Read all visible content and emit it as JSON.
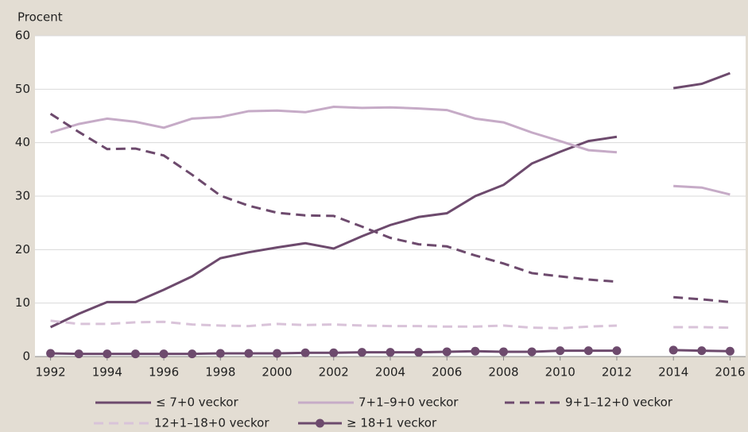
{
  "chart_data": {
    "type": "line",
    "y_label": "Procent",
    "x": [
      1992,
      1993,
      1994,
      1995,
      1996,
      1997,
      1998,
      1999,
      2000,
      2001,
      2002,
      2003,
      2004,
      2005,
      2006,
      2007,
      2008,
      2009,
      2010,
      2011,
      2012,
      2013,
      2014,
      2015,
      2016
    ],
    "xlim": [
      1991.45,
      2016.55
    ],
    "xticks": [
      1992,
      1994,
      1996,
      1998,
      2000,
      2002,
      2004,
      2006,
      2008,
      2010,
      2012,
      2014,
      2016
    ],
    "ylim": [
      0,
      60
    ],
    "yticks": [
      0,
      10,
      20,
      30,
      40,
      50,
      60
    ],
    "grid": true,
    "series": [
      {
        "name": "≤ 7+0 veckor",
        "color": "#6d4a6d",
        "style": "solid",
        "values": [
          5.5,
          8,
          10.2,
          10.2,
          12.5,
          15,
          18.4,
          19.5,
          20.4,
          21.2,
          20.2,
          22.5,
          24.6,
          26.1,
          26.8,
          30,
          32.1,
          36.1,
          38.3,
          40.3,
          41.1,
          null,
          50.2,
          51,
          53
        ]
      },
      {
        "name": "7+1–9+0 veckor",
        "color": "#c6abc7",
        "style": "solid",
        "values": [
          41.9,
          43.5,
          44.5,
          43.9,
          42.8,
          44.5,
          44.8,
          45.9,
          46,
          45.7,
          46.7,
          46.5,
          46.6,
          46.4,
          46.1,
          44.5,
          43.8,
          41.9,
          40.3,
          38.6,
          38.2,
          null,
          31.9,
          31.6,
          30.3
        ]
      },
      {
        "name": "9+1–12+0 veckor",
        "color": "#6d4a6d",
        "style": "dashed",
        "values": [
          45.4,
          42,
          38.8,
          38.9,
          37.6,
          34,
          30.1,
          28.2,
          26.9,
          26.4,
          26.3,
          24.3,
          22.2,
          21,
          20.6,
          18.9,
          17.4,
          15.6,
          15,
          14.4,
          14,
          null,
          11.1,
          10.7,
          10.2
        ]
      },
      {
        "name": "12+1–18+0 veckor",
        "color": "#d9c3d9",
        "style": "dashed",
        "values": [
          6.7,
          6.1,
          6.1,
          6.4,
          6.5,
          6,
          5.8,
          5.7,
          6.1,
          5.9,
          6,
          5.8,
          5.7,
          5.7,
          5.6,
          5.6,
          5.8,
          5.4,
          5.3,
          5.6,
          5.8,
          null,
          5.5,
          5.5,
          5.4
        ]
      },
      {
        "name": "≥ 18+1 veckor",
        "color": "#6d4a6d",
        "style": "markers",
        "values": [
          0.6,
          0.5,
          0.5,
          0.5,
          0.5,
          0.5,
          0.6,
          0.6,
          0.6,
          0.7,
          0.7,
          0.8,
          0.8,
          0.8,
          0.9,
          1.0,
          0.9,
          0.9,
          1.1,
          1.1,
          1.1,
          null,
          1.2,
          1.1,
          1.0
        ]
      }
    ]
  }
}
